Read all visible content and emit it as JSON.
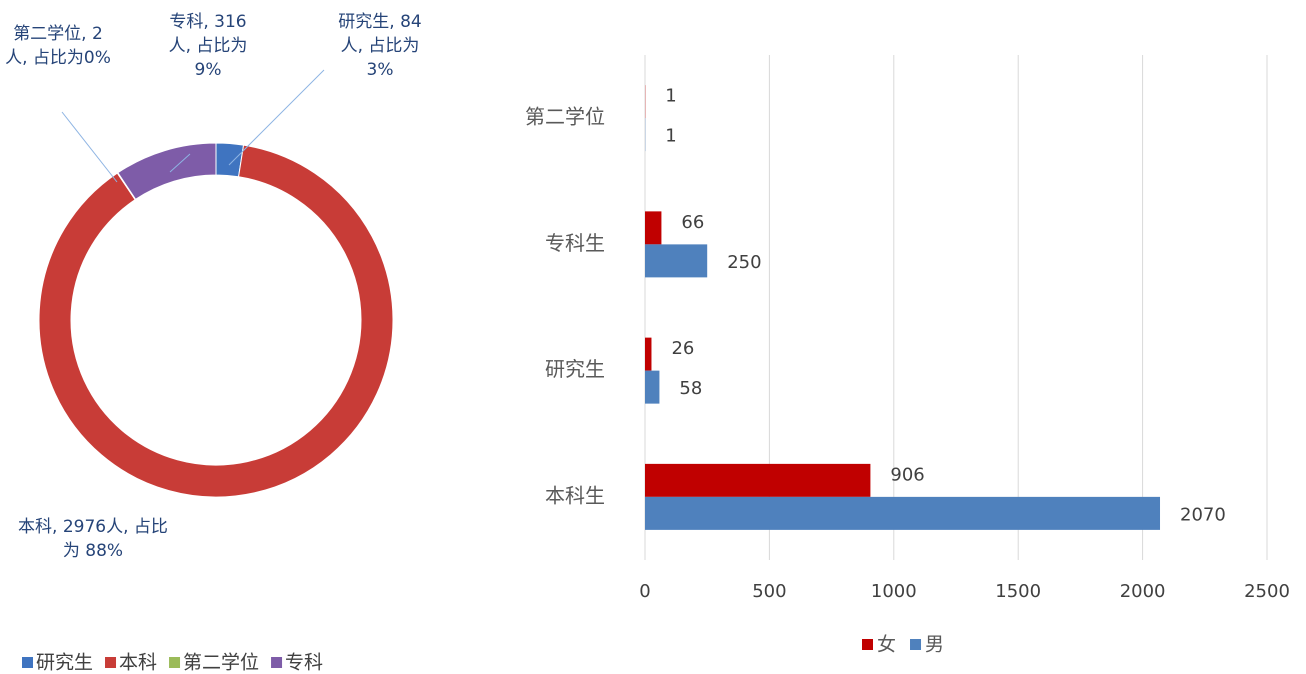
{
  "chart_data": [
    {
      "type": "donut",
      "categories": [
        "研究生",
        "本科",
        "第二学位",
        "专科"
      ],
      "values": [
        84,
        2976,
        2,
        316
      ],
      "value_labels": [
        "研究生, 84人, 占比为 3%",
        "本科, 2976人, 占比为 88%",
        "第二学位, 2人, 占比为0%",
        "专科, 316人, 占比为 9%"
      ],
      "colors": [
        "#3f74c0",
        "#c83c37",
        "#9bbb59",
        "#7e5ca8"
      ],
      "legend": "bottom"
    },
    {
      "type": "hbar",
      "categories": [
        "本科生",
        "研究生",
        "专科生",
        "第二学位"
      ],
      "series": [
        {
          "name": "女",
          "color": "#c00000",
          "values": [
            906,
            26,
            66,
            1
          ]
        },
        {
          "name": "男",
          "color": "#4f81bd",
          "values": [
            2070,
            58,
            250,
            1
          ]
        }
      ],
      "xlim": [
        0,
        2500
      ],
      "xticks": [
        0,
        500,
        1000,
        1500,
        2000,
        2500
      ],
      "grid": true,
      "legend": "bottom"
    }
  ]
}
